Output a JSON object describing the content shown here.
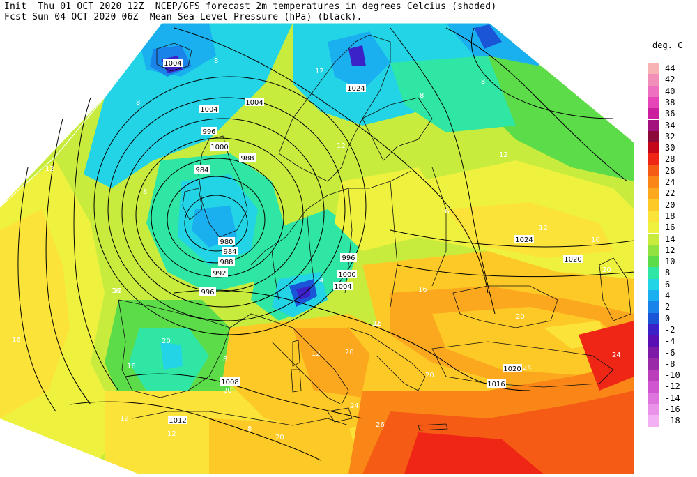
{
  "header": {
    "line1": "Init  Thu 01 OCT 2020 12Z  NCEP/GFS forecast 2m temperatures in degrees Celcius (shaded)",
    "line2": "Fcst Sun 04 OCT 2020 06Z  Mean Sea-Level Pressure (hPa) (black)."
  },
  "legend": {
    "title": "deg. C",
    "entries": [
      {
        "label": "44",
        "color": "#f7b3b3"
      },
      {
        "label": "42",
        "color": "#f28fb8"
      },
      {
        "label": "40",
        "color": "#ee6fc0"
      },
      {
        "label": "38",
        "color": "#e545b8"
      },
      {
        "label": "36",
        "color": "#cc1f9f"
      },
      {
        "label": "34",
        "color": "#a3117f"
      },
      {
        "label": "32",
        "color": "#8b0a3a"
      },
      {
        "label": "30",
        "color": "#c4081a"
      },
      {
        "label": "28",
        "color": "#ef2615"
      },
      {
        "label": "26",
        "color": "#f55b14"
      },
      {
        "label": "24",
        "color": "#f98616"
      },
      {
        "label": "22",
        "color": "#fba81e"
      },
      {
        "label": "20",
        "color": "#fcc926"
      },
      {
        "label": "18",
        "color": "#fbe33a"
      },
      {
        "label": "16",
        "color": "#eef23e"
      },
      {
        "label": "14",
        "color": "#c8ec3e"
      },
      {
        "label": "12",
        "color": "#93e340"
      },
      {
        "label": "10",
        "color": "#5bdc48"
      },
      {
        "label": "8",
        "color": "#2fe6a4"
      },
      {
        "label": "6",
        "color": "#22d4e6"
      },
      {
        "label": "4",
        "color": "#1ab0f0"
      },
      {
        "label": "2",
        "color": "#1a83ea"
      },
      {
        "label": "0",
        "color": "#1a55d8"
      },
      {
        "label": "-2",
        "color": "#3a22c8"
      },
      {
        "label": "-4",
        "color": "#5a0fb4"
      },
      {
        "label": "-6",
        "color": "#7d1aa8"
      },
      {
        "label": "-8",
        "color": "#9b2aa8"
      },
      {
        "label": "-10",
        "color": "#bb3fbb"
      },
      {
        "label": "-12",
        "color": "#cf56cf"
      },
      {
        "label": "-14",
        "color": "#de74de"
      },
      {
        "label": "-16",
        "color": "#ea92ea"
      },
      {
        "label": "-18",
        "color": "#f3b0f3"
      }
    ]
  },
  "isobar_labels": [
    "1004",
    "1004",
    "1004",
    "1024",
    "1000",
    "996",
    "1020",
    "984",
    "988",
    "980",
    "984",
    "988",
    "992",
    "996",
    "996",
    "1000",
    "1004",
    "1024",
    "1020",
    "1008",
    "1012",
    "1016"
  ],
  "temp_labels": [
    "8",
    "8",
    "12",
    "12",
    "8",
    "12",
    "16",
    "20",
    "16",
    "12",
    "8",
    "8",
    "12",
    "16",
    "20",
    "20",
    "24",
    "12",
    "16",
    "20",
    "12",
    "26",
    "24",
    "20",
    "16",
    "16",
    "12",
    "8",
    "4",
    "12",
    "16",
    "20",
    "24",
    "20",
    "12",
    "8"
  ]
}
